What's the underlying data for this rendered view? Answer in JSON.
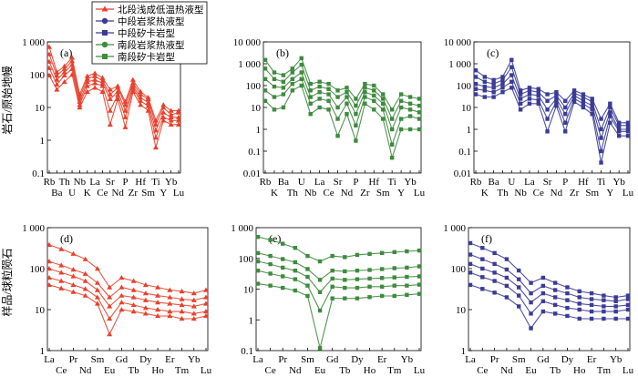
{
  "figure": {
    "ylabel_top": "岩石/原始地幔",
    "ylabel_bottom": "样品/球粒陨石"
  },
  "legend": [
    {
      "label": "北段浅成低温热液型",
      "marker": "triangle",
      "color": "#e8412c"
    },
    {
      "label": "中段岩浆热液型",
      "marker": "circle",
      "color": "#3b3b97"
    },
    {
      "label": "中段矽卡岩型",
      "marker": "square",
      "color": "#3b3b97"
    },
    {
      "label": "南段岩浆热液型",
      "marker": "circle",
      "color": "#3e8a3e"
    },
    {
      "label": "南段矽卡岩型",
      "marker": "square",
      "color": "#3e8a3e"
    }
  ],
  "chart_data": [
    {
      "panel": "(a)",
      "type": "line",
      "scale": "log",
      "ylim": [
        0.1,
        1000
      ],
      "yticks": [
        "0.1",
        "1",
        "10",
        "100",
        "1 000"
      ],
      "x": [
        "Rb",
        "Ba",
        "Th",
        "U",
        "Nb",
        "K",
        "La",
        "Ce",
        "Sr",
        "Nd",
        "P",
        "Zr",
        "Hf",
        "Sm",
        "Ti",
        "Y",
        "Yb",
        "Lu"
      ],
      "color": "#e8412c",
      "marker": "triangle",
      "series": [
        {
          "values": [
            700,
            120,
            180,
            330,
            25,
            90,
            110,
            80,
            35,
            45,
            15,
            70,
            30,
            20,
            4,
            12,
            8,
            8
          ]
        },
        {
          "values": [
            420,
            95,
            150,
            260,
            20,
            75,
            90,
            65,
            25,
            40,
            12,
            55,
            25,
            18,
            3,
            10,
            6,
            7
          ]
        },
        {
          "values": [
            250,
            70,
            120,
            200,
            15,
            60,
            70,
            55,
            18,
            30,
            8,
            45,
            20,
            14,
            2,
            7,
            5,
            5
          ]
        },
        {
          "values": [
            160,
            50,
            95,
            150,
            12,
            45,
            55,
            45,
            8,
            24,
            5,
            38,
            16,
            11,
            1.2,
            5,
            4,
            4
          ]
        },
        {
          "values": [
            95,
            35,
            60,
            100,
            10,
            30,
            40,
            30,
            3,
            18,
            2.5,
            30,
            12,
            8,
            0.6,
            4,
            3,
            3
          ]
        }
      ]
    },
    {
      "panel": "(b)",
      "type": "line",
      "scale": "log",
      "ylim": [
        0.01,
        10000
      ],
      "yticks": [
        "0.01",
        "0.1",
        "1",
        "10",
        "100",
        "1 000",
        "10 000"
      ],
      "x": [
        "Rb",
        "K",
        "Ba",
        "Th",
        "U",
        "Nb",
        "La",
        "Ce",
        "Sr",
        "Nd",
        "P",
        "Zr",
        "Hf",
        "Sm",
        "Ti",
        "Y",
        "Yb",
        "Lu"
      ],
      "color": "#3e8a3e",
      "marker": "square",
      "series": [
        {
          "values": [
            1500,
            400,
            300,
            600,
            1800,
            120,
            150,
            120,
            60,
            80,
            25,
            120,
            100,
            40,
            8,
            40,
            30,
            25
          ]
        },
        {
          "values": [
            600,
            200,
            150,
            400,
            900,
            60,
            90,
            70,
            30,
            50,
            12,
            80,
            60,
            25,
            3,
            20,
            15,
            12
          ]
        },
        {
          "values": [
            200,
            90,
            80,
            200,
            400,
            30,
            50,
            40,
            10,
            30,
            5,
            50,
            35,
            15,
            1,
            10,
            8,
            6
          ]
        },
        {
          "values": [
            60,
            30,
            40,
            120,
            200,
            15,
            25,
            20,
            3,
            15,
            1.5,
            30,
            20,
            8,
            0.2,
            3,
            4,
            3
          ]
        },
        {
          "values": [
            20,
            8,
            10,
            60,
            100,
            5,
            10,
            8,
            0.5,
            5,
            0.3,
            15,
            8,
            3,
            0.05,
            1,
            1,
            1
          ]
        }
      ]
    },
    {
      "panel": "(c)",
      "type": "line",
      "scale": "log",
      "ylim": [
        0.01,
        10000
      ],
      "yticks": [
        "0.01",
        "0.1",
        "1",
        "10",
        "100",
        "1 000",
        "10 000"
      ],
      "x": [
        "Rb",
        "K",
        "Ba",
        "Th",
        "U",
        "Nb",
        "La",
        "Ce",
        "Sr",
        "Nd",
        "P",
        "Zr",
        "Hf",
        "Sm",
        "Ti",
        "Y",
        "Yb",
        "Lu"
      ],
      "color": "#3b3b97",
      "marker": "square",
      "series": [
        {
          "values": [
            500,
            250,
            180,
            250,
            1500,
            60,
            80,
            70,
            40,
            50,
            20,
            60,
            40,
            25,
            3,
            15,
            2,
            2
          ]
        },
        {
          "values": [
            250,
            150,
            120,
            180,
            700,
            40,
            60,
            50,
            20,
            35,
            10,
            45,
            30,
            18,
            1,
            10,
            1.5,
            1.5
          ]
        },
        {
          "values": [
            120,
            90,
            80,
            120,
            300,
            25,
            40,
            35,
            8,
            25,
            5,
            35,
            20,
            12,
            0.4,
            6,
            1,
            1
          ]
        },
        {
          "values": [
            70,
            60,
            50,
            80,
            150,
            15,
            25,
            22,
            3,
            18,
            2,
            25,
            15,
            8,
            0.1,
            4,
            0.8,
            0.8
          ]
        },
        {
          "values": [
            40,
            30,
            30,
            50,
            80,
            8,
            15,
            15,
            0.8,
            12,
            0.8,
            18,
            10,
            5,
            0.03,
            2,
            0.5,
            0.5
          ]
        }
      ]
    },
    {
      "panel": "(d)",
      "type": "line",
      "scale": "log",
      "ylim": [
        1,
        1000
      ],
      "yticks": [
        "1",
        "10",
        "100",
        "1 000"
      ],
      "x": [
        "La",
        "Ce",
        "Pr",
        "Nd",
        "Sm",
        "Eu",
        "Gd",
        "Tb",
        "Dy",
        "Ho",
        "Er",
        "Tm",
        "Yb",
        "Lu"
      ],
      "color": "#e8412c",
      "marker": "triangle",
      "series": [
        {
          "values": [
            380,
            300,
            230,
            170,
            100,
            35,
            60,
            50,
            40,
            35,
            30,
            28,
            25,
            30
          ]
        },
        {
          "values": [
            150,
            120,
            95,
            75,
            45,
            20,
            35,
            30,
            25,
            22,
            20,
            18,
            17,
            20
          ]
        },
        {
          "values": [
            100,
            80,
            65,
            50,
            30,
            12,
            22,
            20,
            17,
            15,
            14,
            13,
            12,
            14
          ]
        },
        {
          "values": [
            60,
            50,
            40,
            32,
            20,
            6,
            15,
            13,
            11,
            10,
            9,
            9,
            8,
            9
          ]
        },
        {
          "values": [
            40,
            33,
            27,
            22,
            14,
            2.5,
            10,
            9,
            8,
            7,
            7,
            6,
            6,
            7
          ]
        }
      ]
    },
    {
      "panel": "(e)",
      "type": "line",
      "scale": "log",
      "ylim": [
        0.1,
        1000
      ],
      "yticks": [
        "0.1",
        "1",
        "10",
        "100",
        "1 000"
      ],
      "x": [
        "La",
        "Ce",
        "Pr",
        "Nd",
        "Sm",
        "Eu",
        "Gd",
        "Tb",
        "Dy",
        "Ho",
        "Er",
        "Tm",
        "Yb",
        "Lu"
      ],
      "color": "#3e8a3e",
      "marker": "square",
      "series": [
        {
          "values": [
            500,
            400,
            300,
            220,
            120,
            80,
            120,
            110,
            130,
            140,
            150,
            160,
            170,
            180
          ]
        },
        {
          "values": [
            150,
            120,
            95,
            75,
            45,
            20,
            40,
            38,
            40,
            42,
            45,
            48,
            50,
            55
          ]
        },
        {
          "values": [
            80,
            65,
            50,
            40,
            25,
            8,
            22,
            20,
            21,
            22,
            23,
            24,
            25,
            26
          ]
        },
        {
          "values": [
            40,
            32,
            26,
            21,
            13,
            2,
            12,
            11,
            11,
            12,
            12,
            13,
            13,
            14
          ]
        },
        {
          "values": [
            15,
            13,
            11,
            9,
            6,
            0.12,
            5,
            5,
            5,
            5.5,
            6,
            6,
            6.5,
            7
          ]
        }
      ]
    },
    {
      "panel": "(f)",
      "type": "line",
      "scale": "log",
      "ylim": [
        1,
        1000
      ],
      "yticks": [
        "1",
        "10",
        "100",
        "1 000"
      ],
      "x": [
        "La",
        "Ce",
        "Pr",
        "Nd",
        "Sm",
        "Eu",
        "Gd",
        "Tb",
        "Dy",
        "Ho",
        "Er",
        "Tm",
        "Yb",
        "Lu"
      ],
      "color": "#3b3b97",
      "marker": "square",
      "series": [
        {
          "values": [
            420,
            320,
            240,
            170,
            90,
            45,
            60,
            45,
            35,
            28,
            25,
            22,
            20,
            22
          ]
        },
        {
          "values": [
            220,
            170,
            130,
            95,
            55,
            25,
            38,
            30,
            25,
            20,
            18,
            17,
            16,
            18
          ]
        },
        {
          "values": [
            130,
            100,
            80,
            60,
            35,
            15,
            25,
            20,
            17,
            14,
            13,
            12,
            12,
            13
          ]
        },
        {
          "values": [
            80,
            62,
            50,
            38,
            22,
            8,
            16,
            13,
            11,
            10,
            9,
            9,
            9,
            10
          ]
        },
        {
          "values": [
            40,
            32,
            26,
            20,
            12,
            3.5,
            9,
            8,
            7,
            6,
            6,
            6,
            6,
            6
          ]
        }
      ]
    }
  ]
}
